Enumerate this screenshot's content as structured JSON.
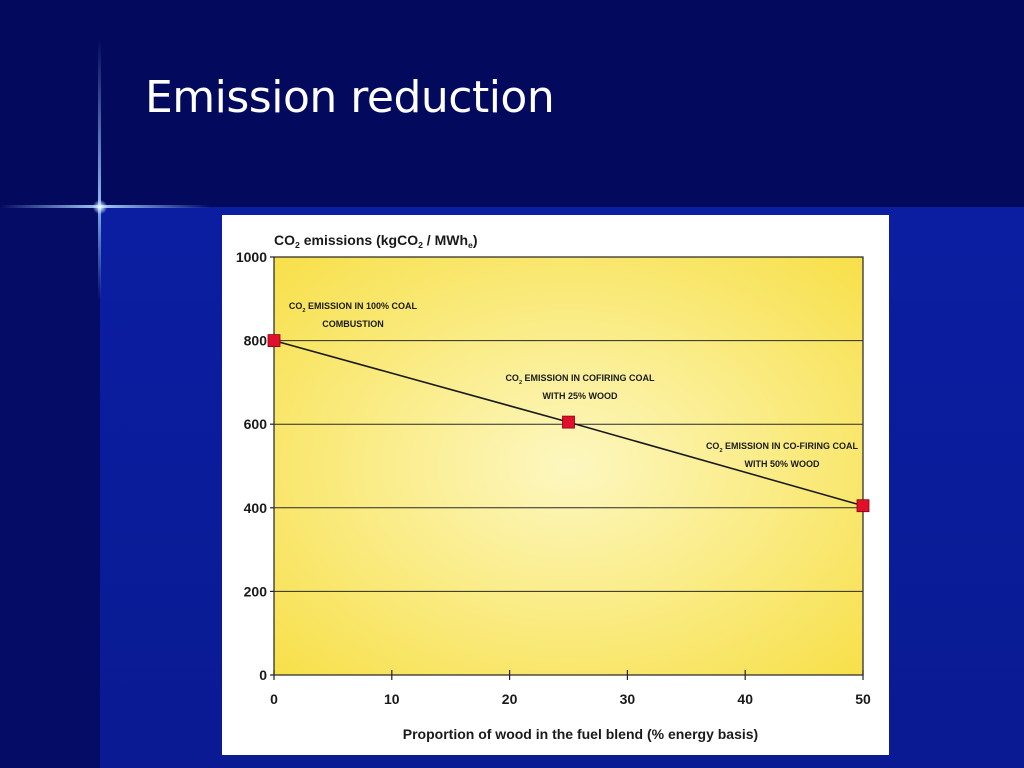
{
  "slide": {
    "title": "Emission reduction"
  },
  "colors": {
    "background": "#0a1a8a",
    "top_band": "#030a5e",
    "plot_fill_center": "#fdf7c0",
    "plot_fill_edge": "#f7e04a",
    "line": "#1a1a1a",
    "marker": "#e0102a"
  },
  "chart_data": {
    "type": "line",
    "ylabel_parts": [
      "CO",
      "2",
      " emissions (kgCO",
      "2",
      " / MWh",
      "e",
      ")"
    ],
    "xlabel": "Proportion of wood in the fuel blend (% energy basis)",
    "x": [
      0,
      25,
      50
    ],
    "y": [
      800,
      605,
      405
    ],
    "xlim": [
      0,
      50
    ],
    "ylim": [
      0,
      1000
    ],
    "xticks": [
      0,
      10,
      20,
      30,
      40,
      50
    ],
    "yticks": [
      0,
      200,
      400,
      600,
      800,
      1000
    ],
    "grid": "horizontal",
    "annotations": [
      {
        "lines": [
          [
            "CO",
            "2",
            " EMISSION IN 100% COAL"
          ],
          [
            "COMBUSTION"
          ]
        ]
      },
      {
        "lines": [
          [
            "CO",
            "2",
            " EMISSION IN COFIRING COAL"
          ],
          [
            "WITH 25% WOOD"
          ]
        ]
      },
      {
        "lines": [
          [
            "CO",
            "2",
            " EMISSION IN CO-FIRING COAL"
          ],
          [
            "WITH 50% WOOD"
          ]
        ]
      }
    ]
  }
}
